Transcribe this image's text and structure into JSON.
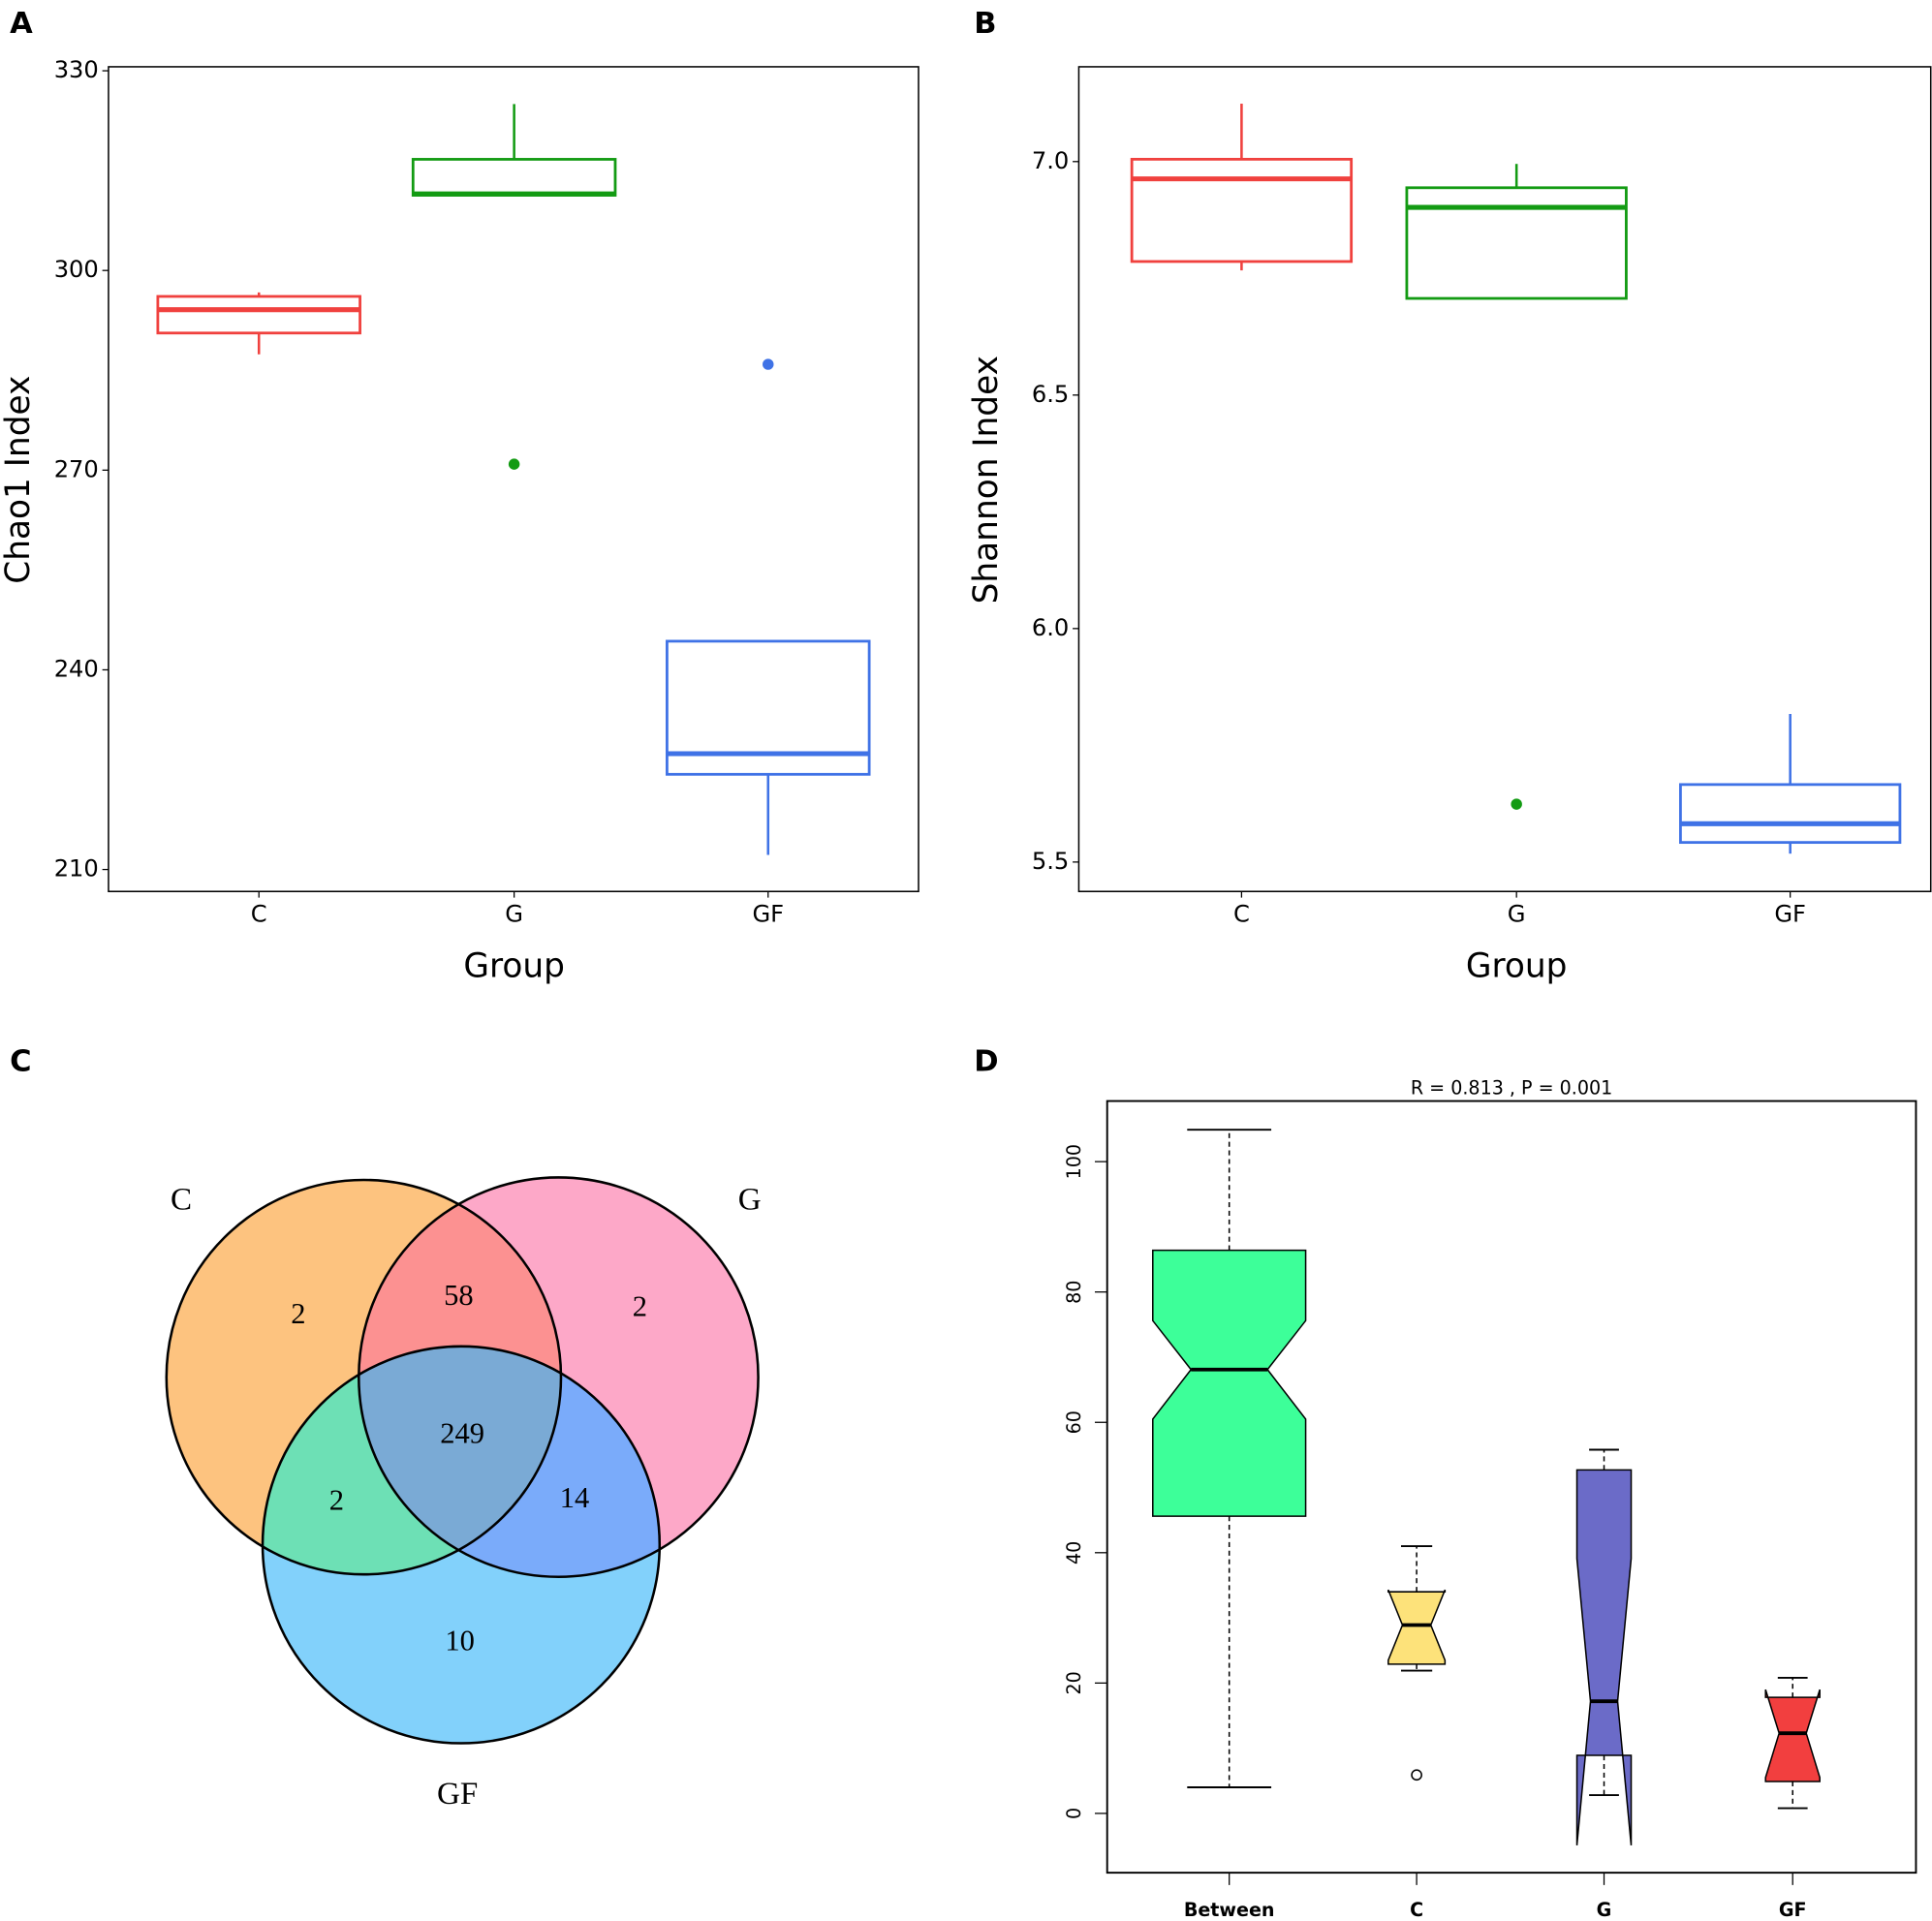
{
  "chart_data": [
    {
      "type": "box",
      "panel_label": "A",
      "xlabel": "Group",
      "ylabel": "Chao1 Index",
      "categories": [
        "C",
        "G",
        "GF"
      ],
      "colors": [
        "#f0413e",
        "#139b13",
        "#3f72e6"
      ],
      "boxes": [
        {
          "min": 287.4,
          "q1": 290.6,
          "median": 294.1,
          "q3": 296.1,
          "max": 296.7,
          "outliers": []
        },
        {
          "min": 311.3,
          "q1": 311.3,
          "median": 311.5,
          "q3": 316.7,
          "max": 325,
          "outliers": [
            270.9
          ]
        },
        {
          "min": 212.2,
          "q1": 224.3,
          "median": 227.4,
          "q3": 244.3,
          "max": 244.3,
          "outliers": [
            285.9
          ]
        }
      ],
      "ylim": [
        206.7,
        330.6
      ],
      "yticks": [
        210,
        240,
        270,
        300,
        330
      ]
    },
    {
      "type": "box",
      "panel_label": "B",
      "xlabel": "Group",
      "ylabel": "Shannon Index",
      "categories": [
        "C",
        "G",
        "GF"
      ],
      "colors": [
        "#f0413e",
        "#139b13",
        "#3f72e6"
      ],
      "boxes": [
        {
          "min": 6.767,
          "q1": 6.786,
          "median": 6.963,
          "q3": 7.005,
          "max": 7.124,
          "outliers": []
        },
        {
          "min": 6.707,
          "q1": 6.707,
          "median": 6.902,
          "q3": 6.944,
          "max": 6.995,
          "outliers": [
            5.624
          ]
        },
        {
          "min": 5.518,
          "q1": 5.542,
          "median": 5.582,
          "q3": 5.666,
          "max": 5.817,
          "outliers": []
        }
      ],
      "ylim": [
        5.437,
        7.203
      ],
      "yticks": [
        5.5,
        {
          "value": 6,
          "label": "6.0"
        },
        6.5,
        {
          "value": 7,
          "label": "7.0"
        }
      ]
    },
    {
      "type": "venn",
      "panel_label": "C",
      "labels": [
        "C",
        "G",
        "GF"
      ],
      "colors": [
        "#fdc37f",
        "#fda8c8",
        "#82d1fb"
      ],
      "counts": {
        "C": 2,
        "G": 2,
        "GF": 10,
        "C&G": 58,
        "C&GF": 2,
        "G&GF": 14,
        "C&G&GF": 249
      }
    },
    {
      "type": "notched_box",
      "panel_label": "D",
      "title": "R = 0.813 , P = 0.001",
      "categories": [
        "Between",
        "C",
        "G",
        "GF"
      ],
      "colors": [
        "#3dff99",
        "#fde27a",
        "#6b6bc8",
        "#f23f3f"
      ],
      "boxes": [
        {
          "min": 4.0,
          "q1": 45.6,
          "median": 68.1,
          "q3": 86.4,
          "max": 104.9,
          "notch": [
            60.5,
            75.6
          ],
          "outliers": []
        },
        {
          "min": 21.9,
          "q1": 22.9,
          "median": 28.9,
          "q3": 34.0,
          "max": 41.0,
          "notch": [
            23.5,
            34.3
          ],
          "outliers": [
            5.9
          ]
        },
        {
          "min": 2.8,
          "q1": 8.9,
          "median": 17.2,
          "q3": 52.7,
          "max": 55.8,
          "notch": [
            -4.9,
            39.1
          ],
          "outliers": []
        },
        {
          "min": 0.8,
          "q1": 4.9,
          "median": 12.3,
          "q3": 17.8,
          "max": 20.8,
          "notch": [
            5.5,
            19.0
          ],
          "outliers": []
        }
      ],
      "ylim": [
        -9.1,
        109.3
      ],
      "yticks": [
        0,
        20,
        40,
        60,
        80,
        100
      ]
    }
  ]
}
